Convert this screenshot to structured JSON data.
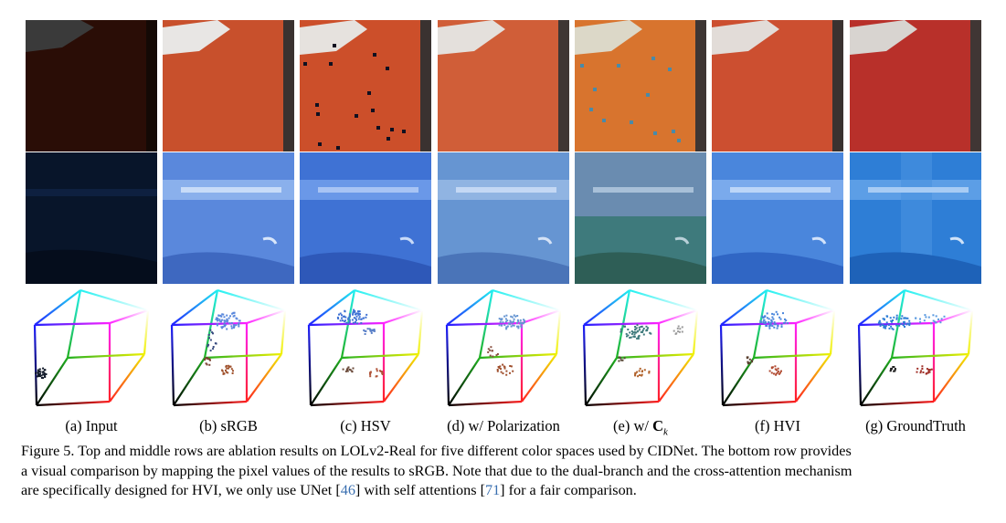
{
  "columns": [
    {
      "id": "input",
      "label": "(a) Input"
    },
    {
      "id": "srgb",
      "label": "(b) sRGB"
    },
    {
      "id": "hsv",
      "label": "(c) HSV"
    },
    {
      "id": "polar",
      "label": "(d) w/ Polarization"
    },
    {
      "id": "ck",
      "label_prefix": "(e) w/ ",
      "label_math": "C",
      "label_sub": "k"
    },
    {
      "id": "hvi",
      "label": "(f) HVI"
    },
    {
      "id": "gt",
      "label": "(g) GroundTruth"
    }
  ],
  "caption": {
    "line1": "Figure 5. Top and middle rows are ablation results on LOLv2-Real for five different color spaces used by CIDNet. The bottom row provides",
    "line2": "a visual comparison by mapping the pixel values of the results to sRGB. Note that due to the dual-branch and the cross-attention mechanism",
    "line3_a": "are specifically designed for HVI, we only use UNet [",
    "ref1": "46",
    "line3_b": "] with self attentions [",
    "ref2": "71",
    "line3_c": "] for a fair comparison."
  },
  "colors": {
    "top_input": "#2a0d06",
    "top_srgb": "#c8502c",
    "top_hsv": "#cc4f2a",
    "top_polar": "#d05e38",
    "top_ck": "#d8742e",
    "top_hvi": "#cc4f30",
    "top_gt": "#b8302a",
    "mid_input": "#08152a",
    "mid_srgb": "#5a88dc",
    "mid_hsv": "#3f72d4",
    "mid_polar": "#6695d2",
    "mid_ck": "#3e7a7c",
    "mid_hvi": "#4a86dc",
    "mid_gt": "#2e7ed6"
  }
}
